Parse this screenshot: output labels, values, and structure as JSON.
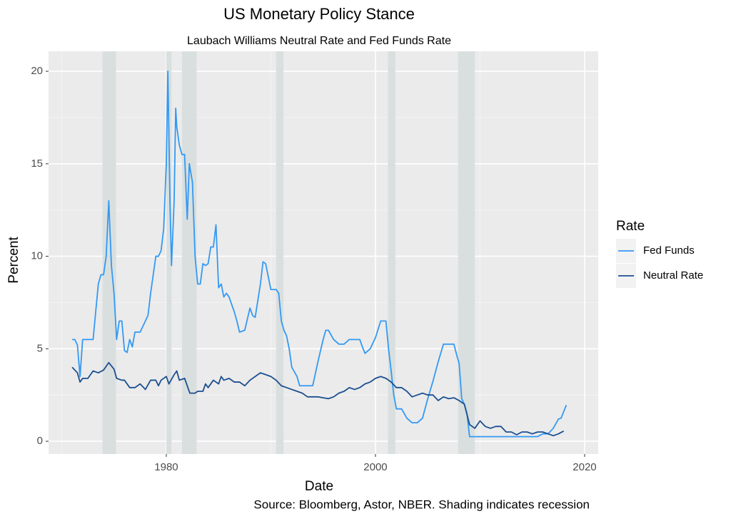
{
  "chart_data": {
    "type": "line",
    "title": "US Monetary Policy Stance",
    "subtitle": "Laubach Williams Neutral Rate and Fed Funds Rate",
    "x_label": "Date",
    "y_label": "Percent",
    "caption": "Source: Bloomberg, Astor, NBER. Shading indicates recession",
    "legend_title": "Rate",
    "legend_position": "right",
    "grid": true,
    "xlim": [
      1968.74,
      2021.3
    ],
    "xticks": [
      1980,
      2000,
      2020
    ],
    "xminor": [
      1970,
      1990,
      2010
    ],
    "ylim": [
      -0.69,
      21.08
    ],
    "yticks": [
      0,
      5,
      10,
      15,
      20
    ],
    "yminor": [
      2.5,
      7.5,
      12.5,
      17.5
    ],
    "recessions": [
      [
        1973.9,
        1975.2
      ],
      [
        1980.0,
        1980.5
      ],
      [
        1981.5,
        1982.9
      ],
      [
        1990.5,
        1991.2
      ],
      [
        2001.2,
        2001.9
      ],
      [
        2007.9,
        2009.5
      ]
    ],
    "recession_color": "#d9dfdf",
    "series": [
      {
        "name": "Fed Funds",
        "color": "#3399f3",
        "x": [
          1971.0,
          1971.25,
          1971.5,
          1971.75,
          1972.0,
          1972.5,
          1973.0,
          1973.25,
          1973.5,
          1973.75,
          1974.0,
          1974.25,
          1974.5,
          1974.75,
          1975.0,
          1975.25,
          1975.5,
          1975.75,
          1976.0,
          1976.25,
          1976.5,
          1976.75,
          1977.0,
          1977.5,
          1978.0,
          1978.25,
          1978.5,
          1978.75,
          1979.0,
          1979.25,
          1979.5,
          1979.75,
          1980.0,
          1980.15,
          1980.35,
          1980.5,
          1980.75,
          1980.9,
          1981.0,
          1981.25,
          1981.5,
          1981.75,
          1982.0,
          1982.2,
          1982.5,
          1982.75,
          1983.0,
          1983.25,
          1983.5,
          1983.75,
          1984.0,
          1984.25,
          1984.5,
          1984.75,
          1985.0,
          1985.25,
          1985.5,
          1985.75,
          1986.0,
          1986.5,
          1986.75,
          1987.0,
          1987.5,
          1988.0,
          1988.25,
          1988.5,
          1989.0,
          1989.25,
          1989.5,
          1990.0,
          1990.5,
          1990.75,
          1991.0,
          1991.25,
          1991.5,
          1991.75,
          1992.0,
          1992.5,
          1992.75,
          1993.5,
          1994.0,
          1994.5,
          1995.0,
          1995.25,
          1995.5,
          1996.0,
          1996.5,
          1997.0,
          1997.5,
          1998.5,
          1998.75,
          1999.0,
          1999.5,
          2000.0,
          2000.5,
          2001.0,
          2001.25,
          2001.5,
          2001.75,
          2002.0,
          2002.5,
          2003.0,
          2003.5,
          2004.0,
          2004.5,
          2005.0,
          2005.5,
          2006.0,
          2006.5,
          2007.0,
          2007.5,
          2007.75,
          2008.0,
          2008.25,
          2008.5,
          2008.75,
          2009.0,
          2010.0,
          2011.0,
          2012.0,
          2013.0,
          2014.0,
          2015.0,
          2015.5,
          2016.0,
          2016.5,
          2017.0,
          2017.5,
          2017.75,
          2018.0,
          2018.25
        ],
        "values": [
          5.5,
          5.5,
          5.2,
          3.5,
          5.5,
          5.5,
          5.5,
          7,
          8.5,
          9,
          9,
          10,
          13,
          9.5,
          8,
          5.5,
          6.5,
          6.5,
          4.9,
          4.8,
          5.5,
          5.1,
          5.9,
          5.9,
          6.5,
          6.8,
          8,
          9,
          10,
          10,
          10.3,
          11.5,
          15,
          20,
          13,
          9.5,
          13,
          18,
          17,
          16,
          15.5,
          15.5,
          12,
          15,
          14,
          10,
          8.5,
          8.5,
          9.6,
          9.5,
          9.6,
          10.5,
          10.5,
          11.7,
          8.3,
          8.5,
          7.8,
          8,
          7.8,
          7,
          6.5,
          5.9,
          6,
          7.2,
          6.8,
          6.7,
          8.5,
          9.7,
          9.6,
          8.2,
          8.2,
          8,
          6.5,
          6,
          5.7,
          5,
          4,
          3.5,
          3,
          3,
          3,
          4.3,
          5.5,
          6,
          6,
          5.5,
          5.25,
          5.25,
          5.5,
          5.5,
          5.1,
          4.75,
          5,
          5.6,
          6.5,
          6.5,
          5,
          3.8,
          2.5,
          1.75,
          1.75,
          1.25,
          1,
          1,
          1.25,
          2.3,
          3.25,
          4.3,
          5.25,
          5.25,
          5.25,
          4.7,
          4.2,
          2.3,
          2,
          1.5,
          0.25,
          0.25,
          0.25,
          0.25,
          0.25,
          0.25,
          0.25,
          0.25,
          0.4,
          0.4,
          0.7,
          1.2,
          1.25,
          1.6,
          1.95
        ]
      },
      {
        "name": "Neutral Rate",
        "color": "#1c4f8f",
        "x": [
          1971.0,
          1971.5,
          1971.75,
          1972.0,
          1972.5,
          1973.0,
          1973.5,
          1974.0,
          1974.5,
          1975.0,
          1975.25,
          1975.75,
          1976.0,
          1976.5,
          1977.0,
          1977.5,
          1978.0,
          1978.5,
          1979.0,
          1979.25,
          1979.5,
          1980.0,
          1980.25,
          1980.75,
          1981.0,
          1981.25,
          1981.75,
          1982.0,
          1982.25,
          1982.75,
          1983.0,
          1983.5,
          1983.75,
          1984.0,
          1984.5,
          1985.0,
          1985.25,
          1985.5,
          1986.0,
          1986.5,
          1987.0,
          1987.5,
          1988.0,
          1988.5,
          1989.0,
          1989.5,
          1990.0,
          1990.5,
          1991.0,
          1991.5,
          1992.0,
          1992.5,
          1993.0,
          1993.5,
          1994.0,
          1994.5,
          1995.0,
          1995.5,
          1996.0,
          1996.5,
          1997.0,
          1997.5,
          1998.0,
          1998.5,
          1999.0,
          1999.5,
          2000.0,
          2000.5,
          2001.0,
          2001.5,
          2002.0,
          2002.5,
          2003.0,
          2003.5,
          2004.0,
          2004.5,
          2005.0,
          2005.5,
          2006.0,
          2006.5,
          2007.0,
          2007.5,
          2008.0,
          2008.5,
          2009.0,
          2009.5,
          2010.0,
          2010.5,
          2011.0,
          2011.5,
          2012.0,
          2012.5,
          2013.0,
          2013.5,
          2014.0,
          2014.5,
          2015.0,
          2015.5,
          2016.0,
          2016.5,
          2017.0,
          2017.5,
          2018.0
        ],
        "values": [
          4,
          3.7,
          3.2,
          3.4,
          3.4,
          3.8,
          3.7,
          3.85,
          4.25,
          3.9,
          3.4,
          3.3,
          3.3,
          2.9,
          2.9,
          3.1,
          2.8,
          3.3,
          3.3,
          3,
          3.3,
          3.5,
          3.1,
          3.6,
          3.8,
          3.3,
          3.4,
          3,
          2.6,
          2.6,
          2.7,
          2.7,
          3.1,
          2.9,
          3.3,
          3.1,
          3.5,
          3.3,
          3.4,
          3.2,
          3.2,
          3,
          3.3,
          3.5,
          3.7,
          3.6,
          3.5,
          3.3,
          3,
          2.9,
          2.8,
          2.7,
          2.6,
          2.4,
          2.4,
          2.4,
          2.35,
          2.3,
          2.4,
          2.6,
          2.7,
          2.9,
          2.8,
          2.9,
          3.1,
          3.2,
          3.4,
          3.5,
          3.4,
          3.2,
          2.9,
          2.9,
          2.7,
          2.4,
          2.5,
          2.6,
          2.5,
          2.5,
          2.2,
          2.4,
          2.3,
          2.35,
          2.2,
          2,
          0.9,
          0.7,
          1.1,
          0.8,
          0.7,
          0.8,
          0.8,
          0.5,
          0.5,
          0.35,
          0.5,
          0.5,
          0.4,
          0.5,
          0.5,
          0.4,
          0.3,
          0.4,
          0.55
        ]
      }
    ]
  }
}
